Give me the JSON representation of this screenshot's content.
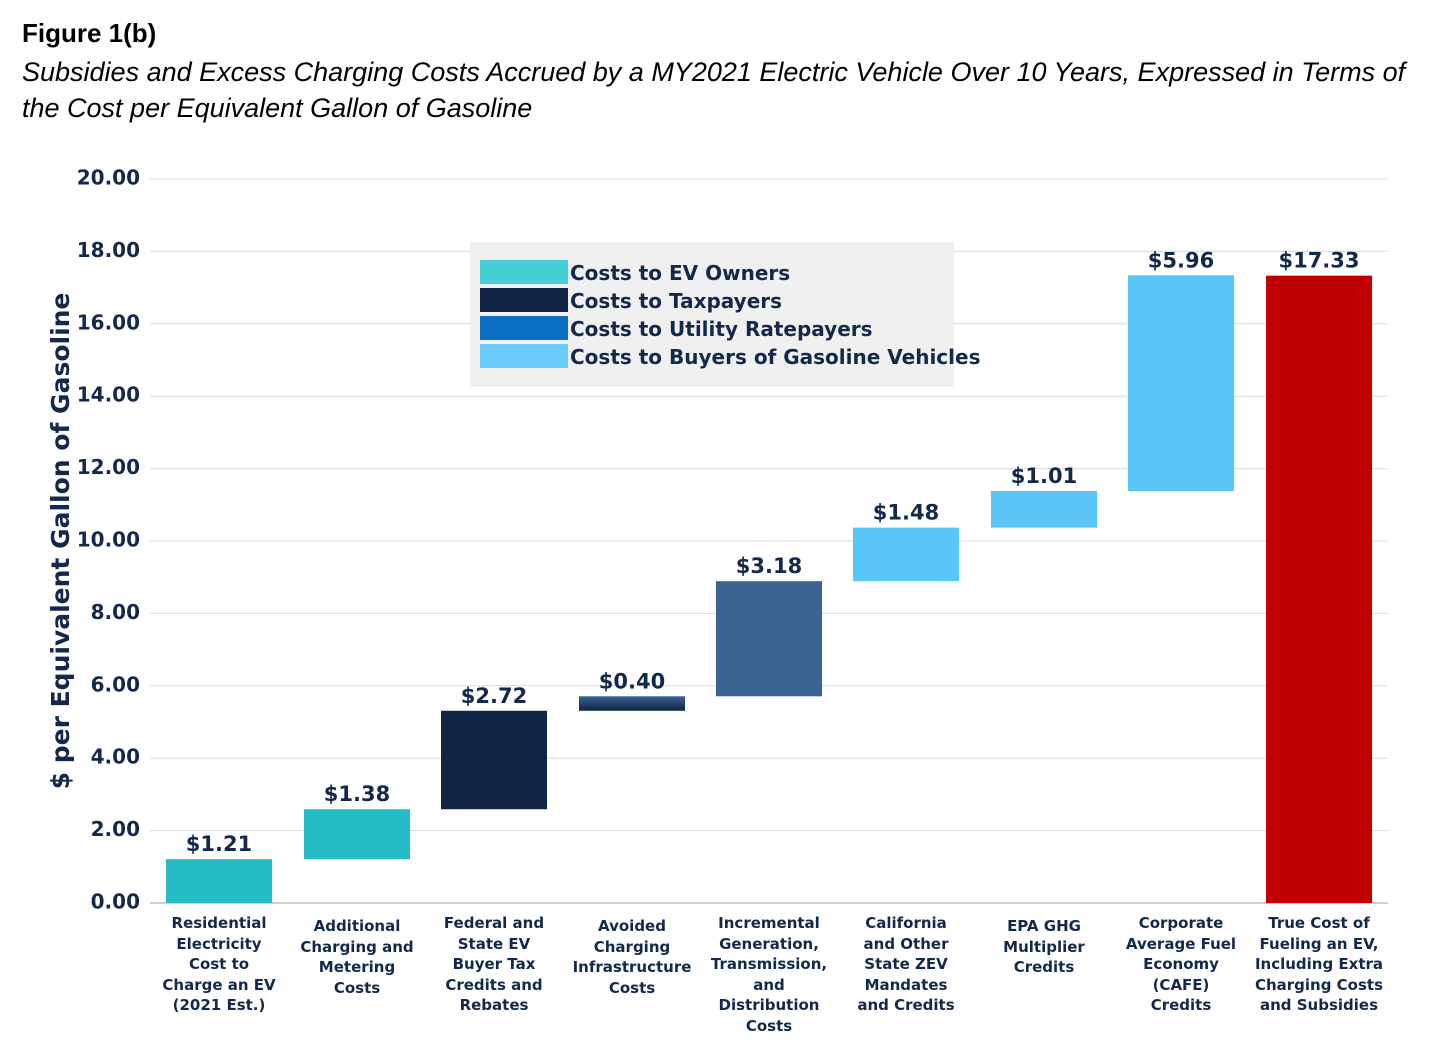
{
  "figure_label": "Figure 1(b)",
  "figure_title": "Subsidies and Excess Charging Costs Accrued by a MY2021 Electric Vehicle Over 10 Years, Expressed in Terms of the Cost per Equivalent Gallon of Gasoline",
  "chart_data": {
    "type": "bar",
    "subtype": "waterfall",
    "ylabel": "$ per Equivalent Gallon of Gasoline",
    "ylim": [
      0,
      20
    ],
    "yticks": [
      "0.00",
      "2.00",
      "4.00",
      "6.00",
      "8.00",
      "10.00",
      "12.00",
      "14.00",
      "16.00",
      "18.00",
      "20.00"
    ],
    "grid": true,
    "legend_placement": "top-center",
    "categories": [
      {
        "lines": [
          "Residential",
          "Electricity",
          "Cost to",
          "Charge an EV",
          "(2021 Est.)"
        ]
      },
      {
        "lines": [
          "Additional",
          "Charging and",
          "Metering",
          "Costs"
        ]
      },
      {
        "lines": [
          "Federal and",
          "State EV",
          "Buyer Tax",
          "Credits and",
          "Rebates"
        ]
      },
      {
        "lines": [
          "Avoided",
          "Charging",
          "Infrastructure",
          "Costs"
        ]
      },
      {
        "lines": [
          "Incremental",
          "Generation,",
          "Transmission,",
          "and",
          "Distribution",
          "Costs"
        ]
      },
      {
        "lines": [
          "California",
          "and Other",
          "State ZEV",
          "Mandates",
          "and Credits"
        ]
      },
      {
        "lines": [
          "EPA GHG",
          "Multiplier",
          "Credits"
        ]
      },
      {
        "lines": [
          "Corporate",
          "Average Fuel",
          "Economy",
          "(CAFE)",
          "Credits"
        ]
      },
      {
        "lines": [
          "True Cost of",
          "Fueling an EV,",
          "Including Extra",
          "Charging Costs",
          "and Subsidies"
        ]
      }
    ],
    "bars": [
      {
        "start": 0.0,
        "end": 1.21,
        "value": 1.21,
        "label": "$1.21",
        "group": "owners"
      },
      {
        "start": 1.21,
        "end": 2.59,
        "value": 1.38,
        "label": "$1.38",
        "group": "owners"
      },
      {
        "start": 2.59,
        "end": 5.31,
        "value": 2.72,
        "label": "$2.72",
        "group": "taxpayers"
      },
      {
        "start": 5.31,
        "end": 5.71,
        "value": 0.4,
        "label": "$0.40",
        "group": "taxpayers_ratepayers"
      },
      {
        "start": 5.71,
        "end": 8.89,
        "value": 3.18,
        "label": "$3.18",
        "group": "ratepayers"
      },
      {
        "start": 8.89,
        "end": 10.37,
        "value": 1.48,
        "label": "$1.48",
        "group": "gas_buyers"
      },
      {
        "start": 10.37,
        "end": 11.38,
        "value": 1.01,
        "label": "$1.01",
        "group": "gas_buyers"
      },
      {
        "start": 11.38,
        "end": 17.34,
        "value": 5.96,
        "label": "$5.96",
        "group": "gas_buyers"
      },
      {
        "start": 0.0,
        "end": 17.33,
        "value": 17.33,
        "label": "$17.33",
        "group": "total"
      }
    ],
    "colors": {
      "owners": "#24bcc4",
      "taxpayers": "#0f2446",
      "ratepayers": "#3a6292",
      "gas_buyers": "#5ac5f7",
      "total": "#c00000"
    },
    "legend": [
      {
        "label": "Costs to EV Owners",
        "color": "#45d0d6"
      },
      {
        "label": "Costs to Taxpayers",
        "color": "#0f2446"
      },
      {
        "label": "Costs to Utility Ratepayers",
        "color": "#0a6fc2"
      },
      {
        "label": "Costs to Buyers of Gasoline Vehicles",
        "color": "#6bcdfc"
      }
    ]
  }
}
